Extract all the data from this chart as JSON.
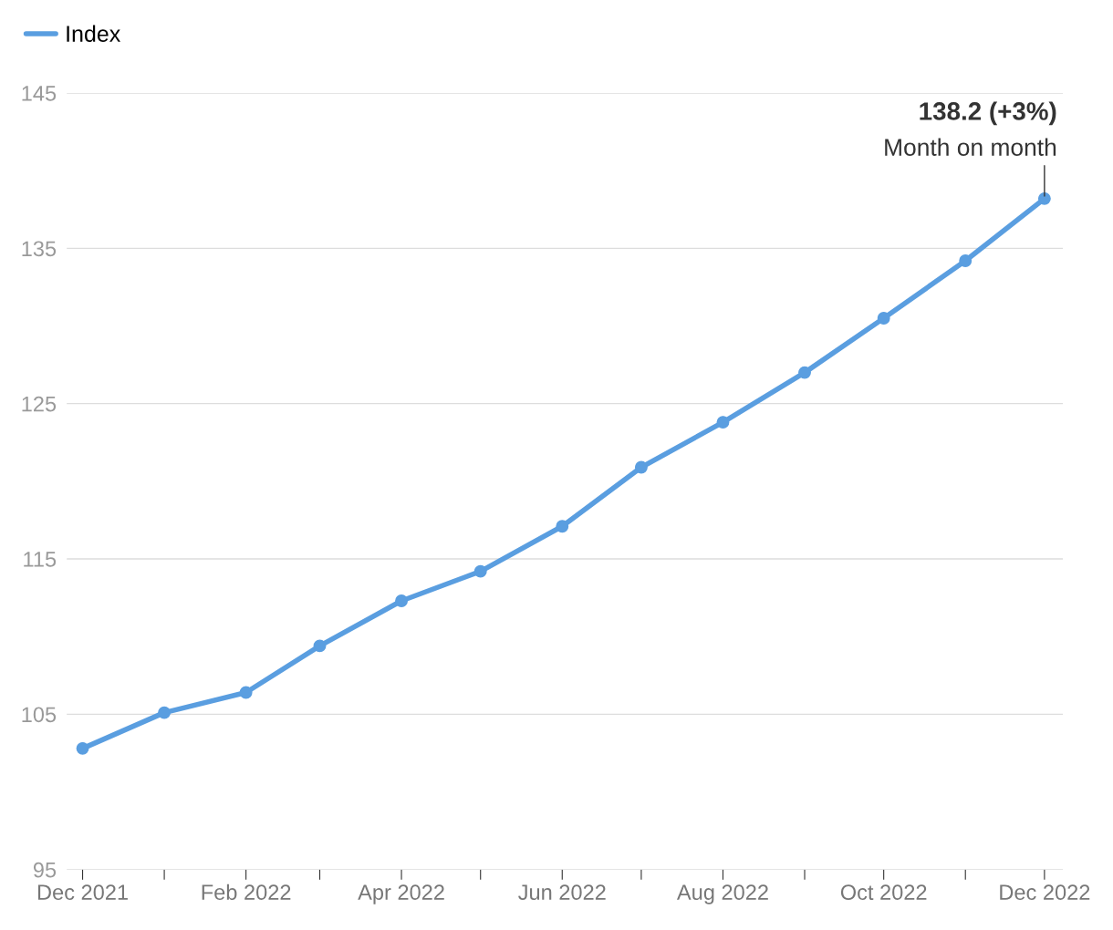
{
  "chart_data": {
    "type": "line",
    "x": [
      "2021-12",
      "2022-01",
      "2022-02",
      "2022-03",
      "2022-04",
      "2022-05",
      "2022-06",
      "2022-07",
      "2022-08",
      "2022-09",
      "2022-10",
      "2022-11",
      "2022-12"
    ],
    "series": [
      {
        "name": "Index",
        "color": "#5a9ee0",
        "values": [
          102.8,
          105.1,
          106.4,
          109.4,
          112.3,
          114.2,
          117.1,
          120.9,
          123.8,
          127.0,
          130.5,
          134.2,
          138.2
        ]
      }
    ],
    "ylim": [
      95,
      145
    ],
    "yticks": [
      95,
      105,
      115,
      125,
      135,
      145
    ],
    "xlim": [
      "2021-11-25",
      "2022-12-08"
    ],
    "xticks": [
      {
        "value": "2021-12",
        "label": "Dec 2021"
      },
      {
        "value": "2022-01",
        "label": null
      },
      {
        "value": "2022-02",
        "label": "Feb 2022"
      },
      {
        "value": "2022-03",
        "label": null
      },
      {
        "value": "2022-04",
        "label": "Apr 2022"
      },
      {
        "value": "2022-05",
        "label": null
      },
      {
        "value": "2022-06",
        "label": "Jun 2022"
      },
      {
        "value": "2022-07",
        "label": null
      },
      {
        "value": "2022-08",
        "label": "Aug 2022"
      },
      {
        "value": "2022-09",
        "label": null
      },
      {
        "value": "2022-10",
        "label": "Oct 2022"
      },
      {
        "value": "2022-11",
        "label": null
      },
      {
        "value": "2022-12",
        "label": "Dec 2022"
      }
    ],
    "annotations": [
      "138.2 (+3%)",
      {
        "text": "Month on month",
        "x": "2022-12",
        "y": 138.2
      }
    ],
    "grid": "y",
    "legend": "top left",
    "marker": "circle",
    "line_style": "solid"
  }
}
